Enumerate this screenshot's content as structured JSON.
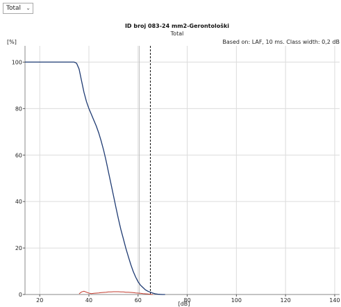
{
  "controls": {
    "view_select": {
      "value": "Total",
      "arrow_icon": "chevron-down-icon"
    }
  },
  "chart_data": {
    "type": "line",
    "title": "ID broj 083-24 mm2-Gerontološki",
    "subtitle": "Total",
    "annotation": "Based on: LAF, 10 ms. Class width: 0,2 dB",
    "xlabel": "[dB]",
    "ylabel": "[%]",
    "xlim": [
      14,
      142
    ],
    "ylim": [
      0,
      107
    ],
    "xticks": [
      "20",
      "40",
      "60",
      "80",
      "100",
      "120",
      "140"
    ],
    "yticks": [
      "0",
      "20",
      "40",
      "60",
      "80",
      "100"
    ],
    "grid": true,
    "vertical_markers": [
      {
        "x": 60.5,
        "style": "solid",
        "color": "#c0c0c0"
      },
      {
        "x": 65,
        "style": "dashed",
        "color": "#111111"
      }
    ],
    "series": [
      {
        "color": "#1f3b73",
        "x": [
          14,
          30,
          34,
          35,
          36,
          37,
          38,
          39,
          40,
          41,
          42,
          43,
          44,
          45,
          46,
          47,
          48,
          49,
          50,
          51,
          52,
          53,
          54,
          55,
          56,
          57,
          58,
          59,
          60,
          61,
          62,
          63,
          64,
          65,
          66,
          67,
          68,
          69,
          70,
          71
        ],
        "y": [
          100,
          100,
          100,
          99.5,
          97,
          92,
          87,
          83,
          80,
          77.5,
          75,
          72.5,
          69.5,
          66,
          62,
          57.5,
          52.5,
          47.5,
          42.5,
          37.5,
          32.5,
          28,
          24,
          20,
          16.5,
          13,
          10,
          7.5,
          5.5,
          4,
          3,
          2,
          1.4,
          1,
          0.6,
          0.3,
          0.15,
          0.05,
          0,
          0
        ]
      },
      {
        "color": "#c0392b",
        "x": [
          36,
          37,
          38,
          39,
          40,
          41,
          42,
          43,
          44,
          45,
          46,
          47,
          48,
          49,
          50,
          51,
          52,
          53,
          54,
          55,
          56,
          57,
          58,
          59,
          60,
          61,
          62,
          63,
          64,
          65,
          66
        ],
        "y": [
          0.3,
          1.1,
          1.4,
          1,
          0.6,
          0.4,
          0.5,
          0.6,
          0.7,
          0.8,
          0.9,
          1,
          1.1,
          1.1,
          1.2,
          1.2,
          1.2,
          1.1,
          1.1,
          1,
          1,
          0.9,
          0.8,
          0.7,
          0.6,
          0.5,
          0.4,
          0.3,
          0.2,
          0.1,
          0
        ]
      }
    ]
  }
}
